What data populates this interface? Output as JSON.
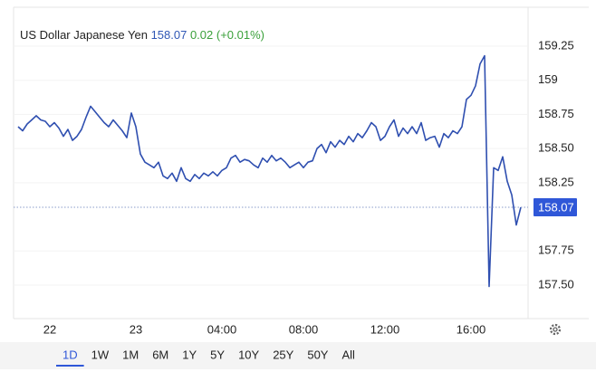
{
  "chart_data": {
    "type": "line",
    "title": "US Dollar Japanese Yen",
    "price": "158.07",
    "change": "0.02 (+0.01%)",
    "color": "#2f4fb0",
    "categories": [
      null,
      null,
      null,
      null,
      null,
      null,
      null,
      "22",
      null,
      null,
      null,
      null,
      null,
      null,
      null,
      null,
      null,
      null,
      null,
      null,
      null,
      null,
      null,
      null,
      null,
      null,
      "23",
      null,
      null,
      null,
      null,
      null,
      null,
      null,
      null,
      null,
      null,
      null,
      null,
      null,
      null,
      null,
      null,
      null,
      null,
      "04:00",
      null,
      null,
      null,
      null,
      null,
      null,
      null,
      null,
      null,
      null,
      null,
      null,
      null,
      null,
      null,
      null,
      null,
      "08:00",
      null,
      null,
      null,
      null,
      null,
      null,
      null,
      null,
      null,
      null,
      null,
      null,
      null,
      null,
      null,
      null,
      null,
      "12:00",
      null,
      null,
      null,
      null,
      null,
      null,
      null,
      null,
      null,
      null,
      null,
      null,
      null,
      null,
      null,
      null,
      null,
      null,
      "16:00",
      null,
      null,
      null,
      null,
      null,
      null,
      null,
      null,
      null,
      null,
      null
    ],
    "values": [
      158.66,
      158.63,
      158.68,
      158.71,
      158.74,
      158.71,
      158.7,
      158.66,
      158.69,
      158.65,
      158.59,
      158.64,
      158.56,
      158.59,
      158.64,
      158.73,
      158.81,
      158.77,
      158.73,
      158.69,
      158.66,
      158.71,
      158.67,
      158.63,
      158.58,
      158.76,
      158.66,
      158.46,
      158.4,
      158.38,
      158.36,
      158.4,
      158.3,
      158.28,
      158.32,
      158.26,
      158.36,
      158.28,
      158.26,
      158.31,
      158.28,
      158.32,
      158.3,
      158.33,
      158.3,
      158.34,
      158.36,
      158.43,
      158.45,
      158.4,
      158.42,
      158.41,
      158.38,
      158.36,
      158.43,
      158.4,
      158.45,
      158.41,
      158.43,
      158.4,
      158.36,
      158.38,
      158.4,
      158.36,
      158.4,
      158.41,
      158.5,
      158.53,
      158.47,
      158.55,
      158.51,
      158.56,
      158.53,
      158.59,
      158.55,
      158.61,
      158.58,
      158.63,
      158.69,
      158.66,
      158.56,
      158.59,
      158.66,
      158.71,
      158.59,
      158.65,
      158.61,
      158.66,
      158.61,
      158.69,
      158.56,
      158.58,
      158.59,
      158.51,
      158.61,
      158.58,
      158.63,
      158.61,
      158.66,
      158.86,
      158.89,
      158.96,
      159.12,
      159.18,
      157.49,
      158.36,
      158.34,
      158.44,
      158.26,
      158.16,
      157.94,
      158.07
    ],
    "ylim": [
      157.25,
      159.5
    ],
    "yticks": [
      {
        "value": 157.5,
        "label": "157.50"
      },
      157.75,
      158.25,
      {
        "value": 158.5,
        "label": "158.50"
      },
      158.75,
      159,
      159.25
    ],
    "ranges": [
      "1D",
      "1W",
      "1M",
      "6M",
      "1Y",
      "5Y",
      "10Y",
      "25Y",
      "50Y",
      "All"
    ],
    "selected_range": "1D"
  }
}
